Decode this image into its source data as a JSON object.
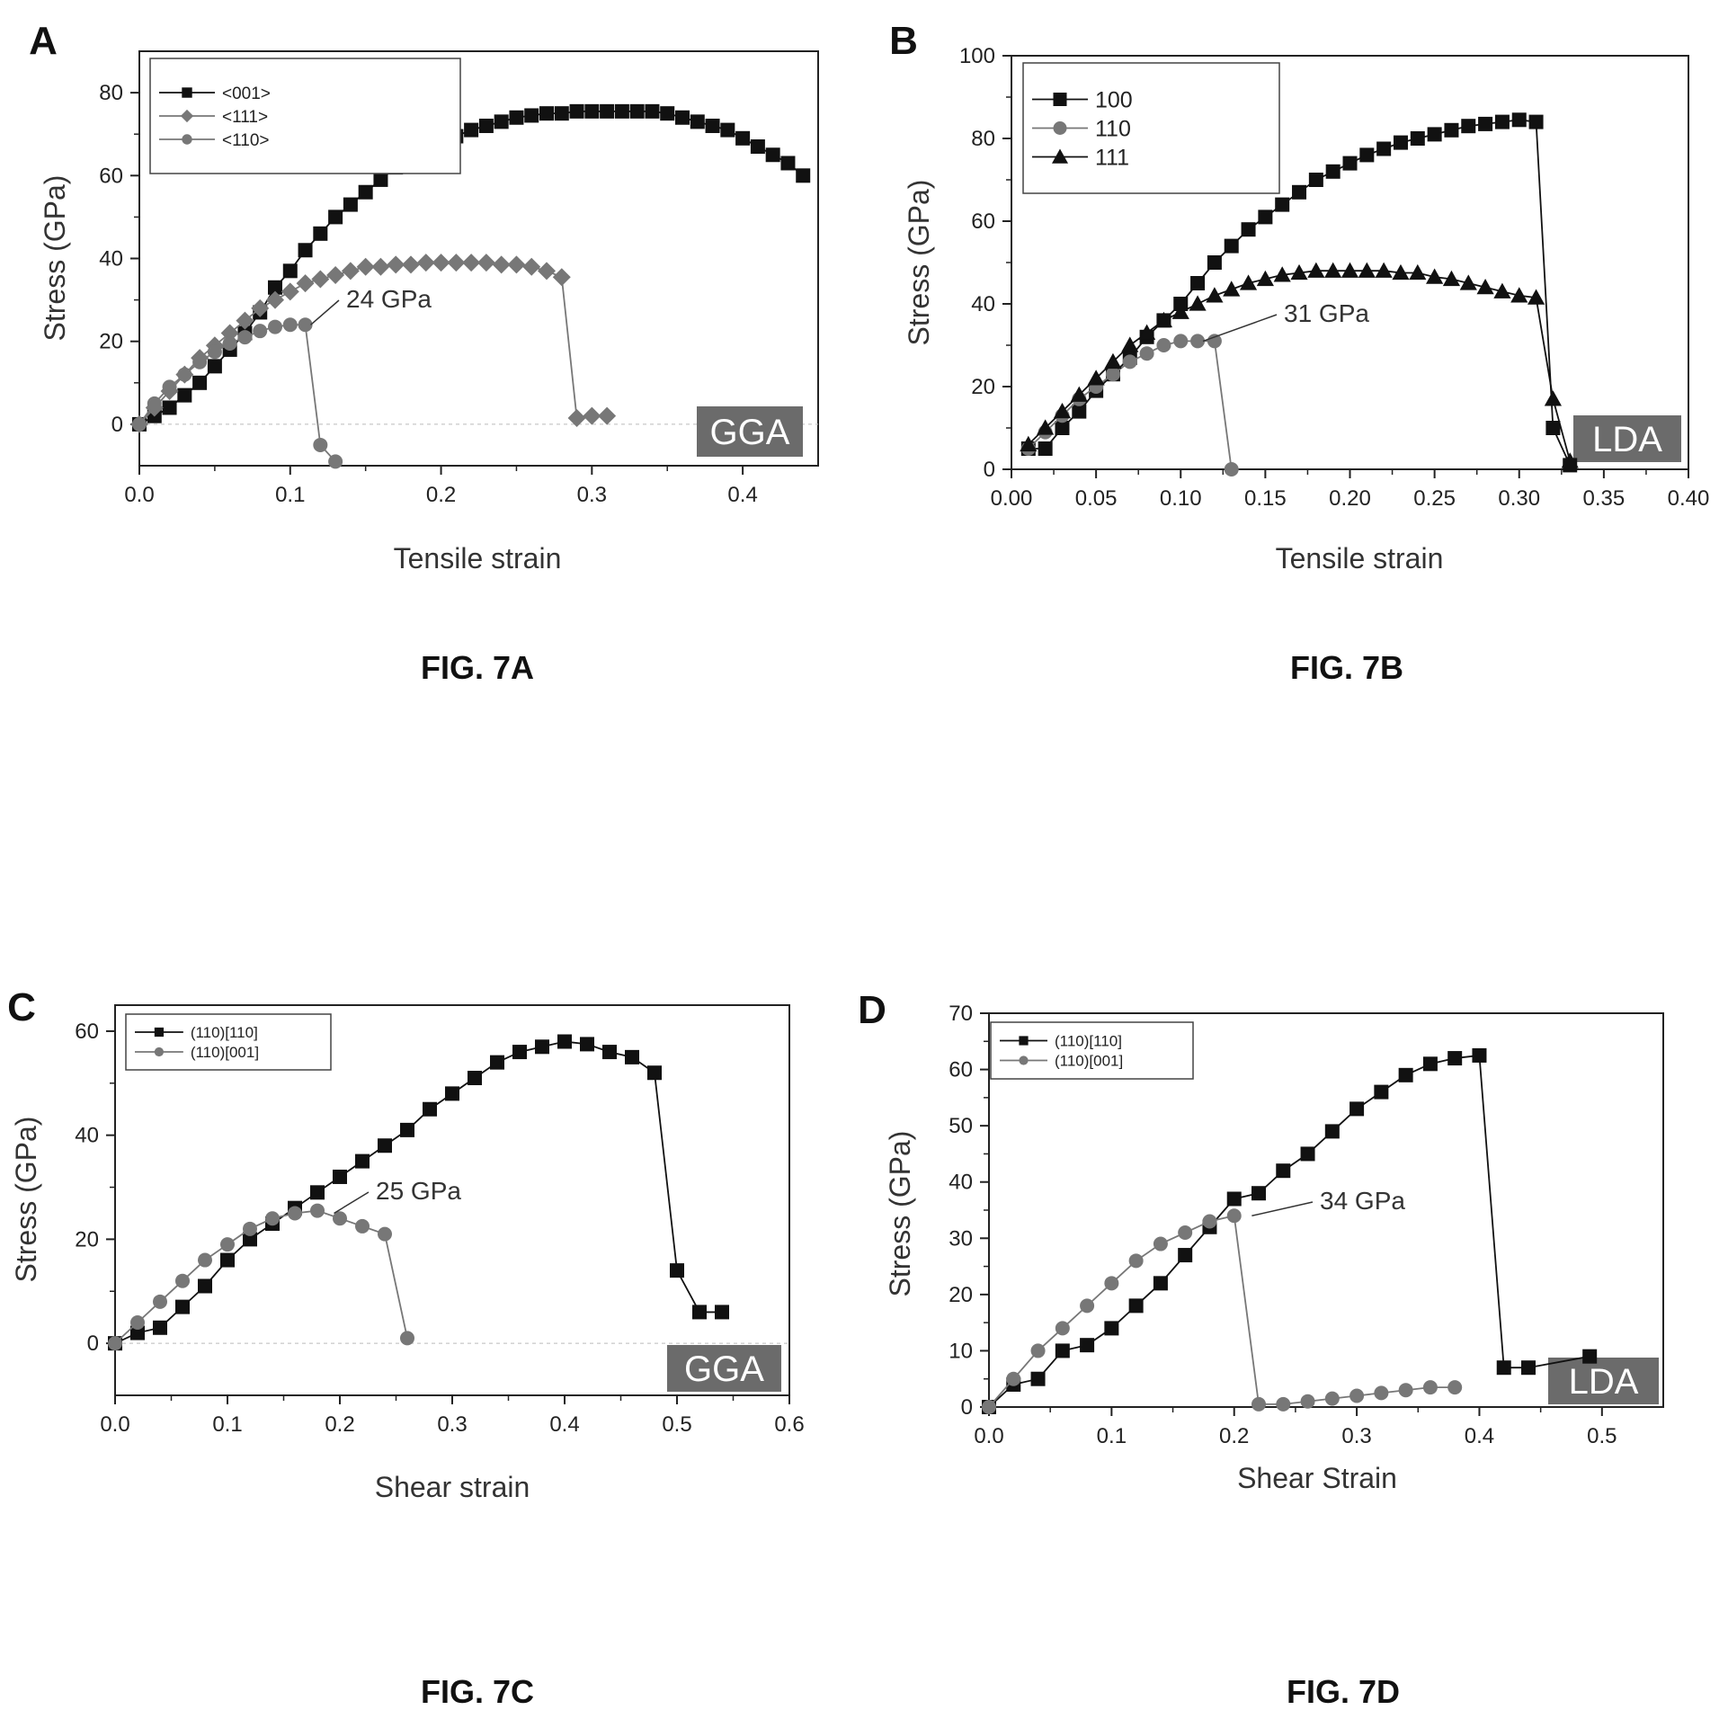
{
  "panels": [
    {
      "letter": "A",
      "caption": "FIG. 7A",
      "method_label": "GGA",
      "annotation": "24 GPa",
      "colors": {
        "black_series": "#111111",
        "gray_series": "#777777",
        "badge": "#6b6b6b"
      },
      "chart_data": {
        "type": "line",
        "xlabel": "Tensile strain",
        "ylabel": "Stress (GPa)",
        "xlim": [
          0,
          0.45
        ],
        "ylim": [
          -10,
          90
        ],
        "xticks": [
          "0.0",
          "0.1",
          "0.2",
          "0.3",
          "0.4"
        ],
        "xtick_values": [
          0,
          0.1,
          0.2,
          0.3,
          0.4
        ],
        "yticks": [
          "0",
          "20",
          "40",
          "60",
          "80"
        ],
        "ytick_values": [
          0,
          20,
          40,
          60,
          80
        ],
        "legend_position": "top-left",
        "annotation_point": [
          0.11,
          24
        ],
        "series": [
          {
            "name": "<001>",
            "marker": "square",
            "color": "#111111",
            "x": [
              0,
              0.01,
              0.02,
              0.03,
              0.04,
              0.05,
              0.06,
              0.07,
              0.08,
              0.09,
              0.1,
              0.11,
              0.12,
              0.13,
              0.14,
              0.15,
              0.16,
              0.17,
              0.18,
              0.19,
              0.2,
              0.21,
              0.22,
              0.23,
              0.24,
              0.25,
              0.26,
              0.27,
              0.28,
              0.29,
              0.3,
              0.31,
              0.32,
              0.33,
              0.34,
              0.35,
              0.36,
              0.37,
              0.38,
              0.39,
              0.4,
              0.41,
              0.42,
              0.43,
              0.44
            ],
            "y": [
              0,
              2,
              4,
              7,
              10,
              14,
              18,
              22,
              27,
              33,
              37,
              42,
              46,
              50,
              53,
              56,
              59,
              62,
              64,
              66,
              68,
              69.5,
              71,
              72,
              73,
              74,
              74.5,
              75,
              75,
              75.5,
              75.5,
              75.5,
              75.5,
              75.5,
              75.5,
              75,
              74,
              73,
              72,
              71,
              69,
              67,
              65,
              63,
              60
            ]
          },
          {
            "name": "<111>",
            "marker": "diamond",
            "color": "#777777",
            "x": [
              0,
              0.01,
              0.02,
              0.03,
              0.04,
              0.05,
              0.06,
              0.07,
              0.08,
              0.09,
              0.1,
              0.11,
              0.12,
              0.13,
              0.14,
              0.15,
              0.16,
              0.17,
              0.18,
              0.19,
              0.2,
              0.21,
              0.22,
              0.23,
              0.24,
              0.25,
              0.26,
              0.27,
              0.28,
              0.29,
              0.3,
              0.31
            ],
            "y": [
              0,
              4,
              8,
              12,
              16,
              19,
              22,
              25,
              28,
              30,
              32,
              34,
              35,
              36,
              37,
              38,
              38,
              38.5,
              38.5,
              39,
              39,
              39,
              39,
              39,
              38.5,
              38.5,
              38,
              37,
              35.5,
              1.5,
              2,
              2
            ]
          },
          {
            "name": "<110>",
            "marker": "circle",
            "color": "#777777",
            "x": [
              0,
              0.01,
              0.02,
              0.03,
              0.04,
              0.05,
              0.06,
              0.07,
              0.08,
              0.09,
              0.1,
              0.11,
              0.12,
              0.13
            ],
            "y": [
              0,
              5,
              9,
              12,
              15,
              17.5,
              19.5,
              21,
              22.5,
              23.5,
              24,
              24,
              -5,
              -9
            ]
          }
        ]
      }
    },
    {
      "letter": "B",
      "caption": "FIG. 7B",
      "method_label": "LDA",
      "annotation": "31 GPa",
      "colors": {
        "black_series": "#111111",
        "gray_series": "#777777",
        "badge": "#6b6b6b"
      },
      "chart_data": {
        "type": "line",
        "xlabel": "Tensile strain",
        "ylabel": "Stress (GPa)",
        "xlim": [
          0,
          0.4
        ],
        "ylim": [
          0,
          100
        ],
        "xticks": [
          "0.00",
          "0.05",
          "0.10",
          "0.15",
          "0.20",
          "0.25",
          "0.30",
          "0.35",
          "0.40"
        ],
        "xtick_values": [
          0,
          0.05,
          0.1,
          0.15,
          0.2,
          0.25,
          0.3,
          0.35,
          0.4
        ],
        "yticks": [
          "0",
          "20",
          "40",
          "60",
          "80",
          "100"
        ],
        "ytick_values": [
          0,
          20,
          40,
          60,
          80,
          100
        ],
        "legend_position": "top-left",
        "annotation_point": [
          0.11,
          31
        ],
        "series": [
          {
            "name": "100",
            "marker": "square",
            "color": "#111111",
            "x": [
              0.01,
              0.02,
              0.03,
              0.04,
              0.05,
              0.06,
              0.07,
              0.08,
              0.09,
              0.1,
              0.11,
              0.12,
              0.13,
              0.14,
              0.15,
              0.16,
              0.17,
              0.18,
              0.19,
              0.2,
              0.21,
              0.22,
              0.23,
              0.24,
              0.25,
              0.26,
              0.27,
              0.28,
              0.29,
              0.3,
              0.31,
              0.32,
              0.33
            ],
            "y": [
              5,
              5,
              10,
              14,
              19,
              23,
              27,
              32,
              36,
              40,
              45,
              50,
              54,
              58,
              61,
              64,
              67,
              70,
              72,
              74,
              76,
              77.5,
              79,
              80,
              81,
              82,
              83,
              83.5,
              84,
              84.5,
              84,
              10,
              1
            ]
          },
          {
            "name": "110",
            "marker": "circle",
            "color": "#777777",
            "x": [
              0.01,
              0.02,
              0.03,
              0.04,
              0.05,
              0.06,
              0.07,
              0.08,
              0.09,
              0.1,
              0.11,
              0.12,
              0.13
            ],
            "y": [
              5,
              9,
              13,
              17,
              20,
              23,
              26,
              28,
              30,
              31,
              31,
              31,
              0
            ]
          },
          {
            "name": "111",
            "marker": "triangle",
            "color": "#111111",
            "x": [
              0.01,
              0.02,
              0.03,
              0.04,
              0.05,
              0.06,
              0.07,
              0.08,
              0.09,
              0.1,
              0.11,
              0.12,
              0.13,
              0.14,
              0.15,
              0.16,
              0.17,
              0.18,
              0.19,
              0.2,
              0.21,
              0.22,
              0.23,
              0.24,
              0.25,
              0.26,
              0.27,
              0.28,
              0.29,
              0.3,
              0.31,
              0.32,
              0.33
            ],
            "y": [
              6,
              10,
              14,
              18,
              22,
              26,
              30,
              33,
              36,
              38,
              40,
              42,
              43.5,
              45,
              46,
              47,
              47.5,
              48,
              48,
              48,
              48,
              48,
              47.5,
              47.5,
              46.5,
              46,
              45,
              44,
              43,
              42,
              41.5,
              17,
              2
            ]
          }
        ]
      }
    },
    {
      "letter": "C",
      "caption": "FIG. 7C",
      "method_label": "GGA",
      "annotation": "25 GPa",
      "colors": {
        "black_series": "#111111",
        "gray_series": "#777777",
        "badge": "#6b6b6b"
      },
      "chart_data": {
        "type": "line",
        "xlabel": "Shear strain",
        "ylabel": "Stress (GPa)",
        "xlim": [
          0,
          0.6
        ],
        "ylim": [
          -10,
          65
        ],
        "xticks": [
          "0.0",
          "0.1",
          "0.2",
          "0.3",
          "0.4",
          "0.5",
          "0.6"
        ],
        "xtick_values": [
          0,
          0.1,
          0.2,
          0.3,
          0.4,
          0.5,
          0.6
        ],
        "yticks": [
          "0",
          "20",
          "40",
          "60"
        ],
        "ytick_values": [
          0,
          20,
          40,
          60
        ],
        "legend_position": "top-left",
        "annotation_point": [
          0.19,
          25
        ],
        "series": [
          {
            "name": "(110)[110]",
            "marker": "square",
            "color": "#111111",
            "x": [
              0,
              0.02,
              0.04,
              0.06,
              0.08,
              0.1,
              0.12,
              0.14,
              0.16,
              0.18,
              0.2,
              0.22,
              0.24,
              0.26,
              0.28,
              0.3,
              0.32,
              0.34,
              0.36,
              0.38,
              0.4,
              0.42,
              0.44,
              0.46,
              0.48,
              0.5,
              0.52,
              0.54
            ],
            "y": [
              0,
              2,
              3,
              7,
              11,
              16,
              20,
              23,
              26,
              29,
              32,
              35,
              38,
              41,
              45,
              48,
              51,
              54,
              56,
              57,
              58,
              57.5,
              56,
              55,
              52,
              14,
              6,
              6
            ]
          },
          {
            "name": "(110)[001]",
            "marker": "circle",
            "color": "#777777",
            "x": [
              0,
              0.02,
              0.04,
              0.06,
              0.08,
              0.1,
              0.12,
              0.14,
              0.16,
              0.18,
              0.2,
              0.22,
              0.24,
              0.26
            ],
            "y": [
              0,
              4,
              8,
              12,
              16,
              19,
              22,
              24,
              25,
              25.5,
              24,
              22.5,
              21,
              1
            ]
          }
        ]
      }
    },
    {
      "letter": "D",
      "caption": "FIG. 7D",
      "method_label": "LDA",
      "annotation": "34 GPa",
      "colors": {
        "black_series": "#111111",
        "gray_series": "#777777",
        "badge": "#6b6b6b"
      },
      "chart_data": {
        "type": "line",
        "xlabel": "Shear Strain",
        "ylabel": "Stress (GPa)",
        "xlim": [
          0,
          0.55
        ],
        "ylim": [
          0,
          70
        ],
        "xticks": [
          "0.0",
          "0.1",
          "0.2",
          "0.3",
          "0.4",
          "0.5"
        ],
        "xtick_values": [
          0,
          0.1,
          0.2,
          0.3,
          0.4,
          0.5
        ],
        "yticks": [
          "0",
          "10",
          "20",
          "30",
          "40",
          "50",
          "60",
          "70"
        ],
        "ytick_values": [
          0,
          10,
          20,
          30,
          40,
          50,
          60,
          70
        ],
        "legend_position": "top-left",
        "annotation_point": [
          0.21,
          34
        ],
        "series": [
          {
            "name": "(110)[110]",
            "marker": "square",
            "color": "#111111",
            "x": [
              0,
              0.02,
              0.04,
              0.06,
              0.08,
              0.1,
              0.12,
              0.14,
              0.16,
              0.18,
              0.2,
              0.22,
              0.24,
              0.26,
              0.28,
              0.3,
              0.32,
              0.34,
              0.36,
              0.38,
              0.4,
              0.42,
              0.44,
              0.49
            ],
            "y": [
              0,
              4,
              5,
              10,
              11,
              14,
              18,
              22,
              27,
              32,
              37,
              38,
              42,
              45,
              49,
              53,
              56,
              59,
              61,
              62,
              62.5,
              7,
              7,
              9
            ]
          },
          {
            "name": "(110)[001]",
            "marker": "circle",
            "color": "#777777",
            "x": [
              0,
              0.02,
              0.04,
              0.06,
              0.08,
              0.1,
              0.12,
              0.14,
              0.16,
              0.18,
              0.2,
              0.22,
              0.24,
              0.26,
              0.28,
              0.3,
              0.32,
              0.34,
              0.36,
              0.38
            ],
            "y": [
              0,
              5,
              10,
              14,
              18,
              22,
              26,
              29,
              31,
              33,
              34,
              0.5,
              0.5,
              1,
              1.5,
              2,
              2.5,
              3,
              3.5,
              3.5
            ]
          }
        ]
      }
    }
  ]
}
